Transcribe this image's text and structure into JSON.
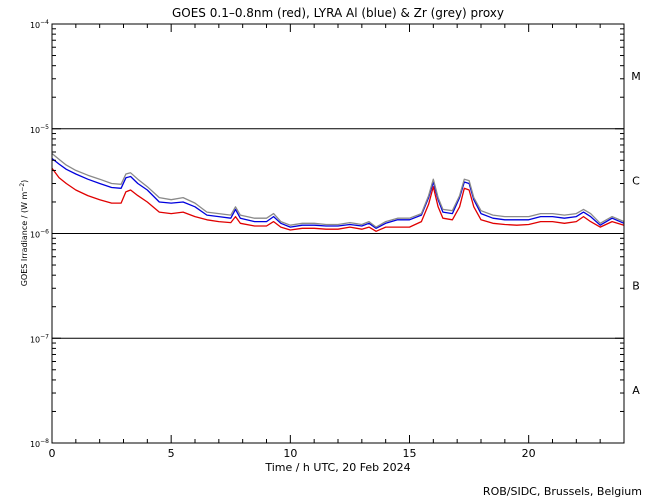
{
  "chart_data": {
    "type": "line",
    "title": "GOES 0.1–0.8nm (red), LYRA Al (blue) & Zr (grey) proxy",
    "xlabel": "Time / h UTC, 20 Feb 2024",
    "ylabel": "GOES Irradiance / (W m",
    "ylabel_sup": "−2",
    "ylabel_end": ")",
    "xlim": [
      0,
      24
    ],
    "ylim": [
      1e-08,
      0.0001
    ],
    "yscale": "log",
    "x_ticks": [
      0,
      5,
      10,
      15,
      20
    ],
    "x_tick_labels": [
      "0",
      "5",
      "10",
      "15",
      "20"
    ],
    "y_ticks": [
      {
        "value": 0.0001,
        "base": "10",
        "exp": "−4"
      },
      {
        "value": 1e-05,
        "base": "10",
        "exp": "−5"
      },
      {
        "value": 1e-06,
        "base": "10",
        "exp": "−6"
      },
      {
        "value": 1e-07,
        "base": "10",
        "exp": "−7"
      },
      {
        "value": 1e-08,
        "base": "10",
        "exp": "−8"
      }
    ],
    "class_lines": [
      1e-05,
      1e-06,
      1e-07
    ],
    "class_labels": [
      {
        "label": "M",
        "value": 3.2e-05
      },
      {
        "label": "C",
        "value": 3.2e-06
      },
      {
        "label": "B",
        "value": 3.2e-07
      },
      {
        "label": "A",
        "value": 3.2e-08
      }
    ],
    "series": [
      {
        "color": "#e00000",
        "points": [
          [
            0,
            4.2e-06
          ],
          [
            0.3,
            3.4e-06
          ],
          [
            0.6,
            3e-06
          ],
          [
            1,
            2.6e-06
          ],
          [
            1.5,
            2.3e-06
          ],
          [
            2,
            2.1e-06
          ],
          [
            2.5,
            1.95e-06
          ],
          [
            2.9,
            1.95e-06
          ],
          [
            3.1,
            2.5e-06
          ],
          [
            3.3,
            2.6e-06
          ],
          [
            3.6,
            2.3e-06
          ],
          [
            4,
            2e-06
          ],
          [
            4.5,
            1.6e-06
          ],
          [
            5,
            1.55e-06
          ],
          [
            5.5,
            1.6e-06
          ],
          [
            6,
            1.45e-06
          ],
          [
            6.5,
            1.35e-06
          ],
          [
            7,
            1.3e-06
          ],
          [
            7.5,
            1.27e-06
          ],
          [
            7.7,
            1.45e-06
          ],
          [
            7.9,
            1.25e-06
          ],
          [
            8.5,
            1.18e-06
          ],
          [
            9,
            1.18e-06
          ],
          [
            9.3,
            1.3e-06
          ],
          [
            9.6,
            1.15e-06
          ],
          [
            10,
            1.08e-06
          ],
          [
            10.5,
            1.12e-06
          ],
          [
            11,
            1.12e-06
          ],
          [
            11.5,
            1.1e-06
          ],
          [
            12,
            1.1e-06
          ],
          [
            12.5,
            1.15e-06
          ],
          [
            13,
            1.1e-06
          ],
          [
            13.3,
            1.15e-06
          ],
          [
            13.6,
            1.05e-06
          ],
          [
            14,
            1.15e-06
          ],
          [
            14.5,
            1.15e-06
          ],
          [
            15,
            1.15e-06
          ],
          [
            15.5,
            1.3e-06
          ],
          [
            15.8,
            1.9e-06
          ],
          [
            16.0,
            2.8e-06
          ],
          [
            16.2,
            1.8e-06
          ],
          [
            16.4,
            1.4e-06
          ],
          [
            16.8,
            1.35e-06
          ],
          [
            17.1,
            1.8e-06
          ],
          [
            17.3,
            2.7e-06
          ],
          [
            17.5,
            2.6e-06
          ],
          [
            17.7,
            1.8e-06
          ],
          [
            18,
            1.35e-06
          ],
          [
            18.5,
            1.25e-06
          ],
          [
            19,
            1.22e-06
          ],
          [
            19.5,
            1.2e-06
          ],
          [
            20,
            1.22e-06
          ],
          [
            20.5,
            1.3e-06
          ],
          [
            21,
            1.3e-06
          ],
          [
            21.5,
            1.25e-06
          ],
          [
            22,
            1.3e-06
          ],
          [
            22.3,
            1.45e-06
          ],
          [
            22.6,
            1.3e-06
          ],
          [
            23,
            1.15e-06
          ],
          [
            23.5,
            1.3e-06
          ],
          [
            24,
            1.2e-06
          ]
        ]
      },
      {
        "color": "#0000dd",
        "points": [
          [
            0,
            5.2e-06
          ],
          [
            0.3,
            4.6e-06
          ],
          [
            0.6,
            4.1e-06
          ],
          [
            1,
            3.7e-06
          ],
          [
            1.5,
            3.3e-06
          ],
          [
            2,
            3e-06
          ],
          [
            2.5,
            2.75e-06
          ],
          [
            2.9,
            2.7e-06
          ],
          [
            3.1,
            3.4e-06
          ],
          [
            3.3,
            3.5e-06
          ],
          [
            3.6,
            3e-06
          ],
          [
            4,
            2.6e-06
          ],
          [
            4.5,
            2e-06
          ],
          [
            5,
            1.95e-06
          ],
          [
            5.5,
            2e-06
          ],
          [
            6,
            1.8e-06
          ],
          [
            6.5,
            1.5e-06
          ],
          [
            7,
            1.45e-06
          ],
          [
            7.5,
            1.4e-06
          ],
          [
            7.7,
            1.7e-06
          ],
          [
            7.9,
            1.4e-06
          ],
          [
            8.5,
            1.3e-06
          ],
          [
            9,
            1.3e-06
          ],
          [
            9.3,
            1.45e-06
          ],
          [
            9.6,
            1.25e-06
          ],
          [
            10,
            1.15e-06
          ],
          [
            10.5,
            1.2e-06
          ],
          [
            11,
            1.2e-06
          ],
          [
            11.5,
            1.18e-06
          ],
          [
            12,
            1.18e-06
          ],
          [
            12.5,
            1.22e-06
          ],
          [
            13,
            1.18e-06
          ],
          [
            13.3,
            1.25e-06
          ],
          [
            13.6,
            1.12e-06
          ],
          [
            14,
            1.25e-06
          ],
          [
            14.5,
            1.35e-06
          ],
          [
            15,
            1.35e-06
          ],
          [
            15.5,
            1.5e-06
          ],
          [
            15.8,
            2.2e-06
          ],
          [
            16.0,
            3.1e-06
          ],
          [
            16.2,
            2.1e-06
          ],
          [
            16.4,
            1.6e-06
          ],
          [
            16.8,
            1.55e-06
          ],
          [
            17.1,
            2.2e-06
          ],
          [
            17.3,
            3.1e-06
          ],
          [
            17.5,
            3e-06
          ],
          [
            17.7,
            2.1e-06
          ],
          [
            18,
            1.55e-06
          ],
          [
            18.5,
            1.4e-06
          ],
          [
            19,
            1.35e-06
          ],
          [
            19.5,
            1.35e-06
          ],
          [
            20,
            1.35e-06
          ],
          [
            20.5,
            1.45e-06
          ],
          [
            21,
            1.45e-06
          ],
          [
            21.5,
            1.4e-06
          ],
          [
            22,
            1.45e-06
          ],
          [
            22.3,
            1.6e-06
          ],
          [
            22.6,
            1.45e-06
          ],
          [
            23,
            1.2e-06
          ],
          [
            23.5,
            1.4e-06
          ],
          [
            24,
            1.25e-06
          ]
        ]
      },
      {
        "color": "#8a8a8a",
        "points": [
          [
            0,
            5.8e-06
          ],
          [
            0.3,
            5.1e-06
          ],
          [
            0.6,
            4.5e-06
          ],
          [
            1,
            4e-06
          ],
          [
            1.5,
            3.6e-06
          ],
          [
            2,
            3.3e-06
          ],
          [
            2.5,
            3e-06
          ],
          [
            2.9,
            2.95e-06
          ],
          [
            3.1,
            3.7e-06
          ],
          [
            3.3,
            3.8e-06
          ],
          [
            3.6,
            3.3e-06
          ],
          [
            4,
            2.8e-06
          ],
          [
            4.5,
            2.2e-06
          ],
          [
            5,
            2.1e-06
          ],
          [
            5.5,
            2.2e-06
          ],
          [
            6,
            1.95e-06
          ],
          [
            6.5,
            1.6e-06
          ],
          [
            7,
            1.55e-06
          ],
          [
            7.5,
            1.5e-06
          ],
          [
            7.7,
            1.8e-06
          ],
          [
            7.9,
            1.5e-06
          ],
          [
            8.5,
            1.4e-06
          ],
          [
            9,
            1.4e-06
          ],
          [
            9.3,
            1.55e-06
          ],
          [
            9.6,
            1.3e-06
          ],
          [
            10,
            1.2e-06
          ],
          [
            10.5,
            1.25e-06
          ],
          [
            11,
            1.25e-06
          ],
          [
            11.5,
            1.22e-06
          ],
          [
            12,
            1.22e-06
          ],
          [
            12.5,
            1.27e-06
          ],
          [
            13,
            1.22e-06
          ],
          [
            13.3,
            1.3e-06
          ],
          [
            13.6,
            1.15e-06
          ],
          [
            14,
            1.3e-06
          ],
          [
            14.5,
            1.4e-06
          ],
          [
            15,
            1.4e-06
          ],
          [
            15.5,
            1.55e-06
          ],
          [
            15.8,
            2.3e-06
          ],
          [
            16.0,
            3.3e-06
          ],
          [
            16.2,
            2.2e-06
          ],
          [
            16.4,
            1.7e-06
          ],
          [
            16.8,
            1.65e-06
          ],
          [
            17.1,
            2.3e-06
          ],
          [
            17.3,
            3.3e-06
          ],
          [
            17.5,
            3.2e-06
          ],
          [
            17.7,
            2.2e-06
          ],
          [
            18,
            1.65e-06
          ],
          [
            18.5,
            1.5e-06
          ],
          [
            19,
            1.45e-06
          ],
          [
            19.5,
            1.45e-06
          ],
          [
            20,
            1.45e-06
          ],
          [
            20.5,
            1.55e-06
          ],
          [
            21,
            1.55e-06
          ],
          [
            21.5,
            1.5e-06
          ],
          [
            22,
            1.55e-06
          ],
          [
            22.3,
            1.7e-06
          ],
          [
            22.6,
            1.55e-06
          ],
          [
            23,
            1.25e-06
          ],
          [
            23.5,
            1.45e-06
          ],
          [
            24,
            1.3e-06
          ]
        ]
      }
    ]
  },
  "footer": {
    "credit": "ROB/SIDC, Brussels, Belgium"
  }
}
